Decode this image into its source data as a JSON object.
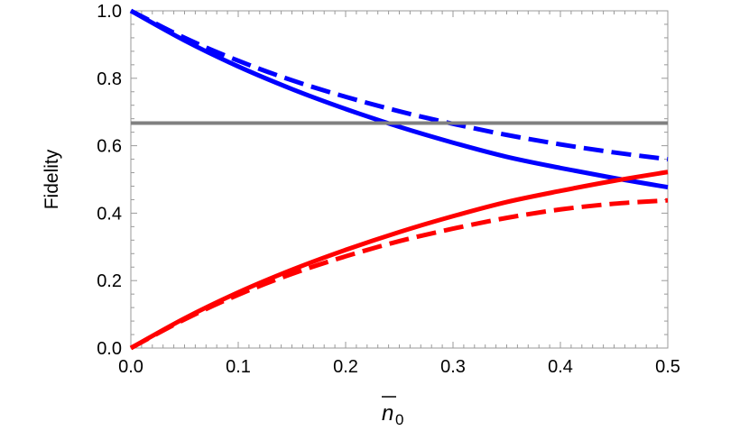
{
  "chart_data": {
    "type": "line",
    "title": "",
    "xlabel": "n̄₀",
    "xlabel_base": "n",
    "xlabel_subscript": "0",
    "ylabel": "Fidelity",
    "xlim": [
      0,
      0.5
    ],
    "ylim": [
      0,
      1.0
    ],
    "x_ticks": [
      0.0,
      0.1,
      0.2,
      0.3,
      0.4,
      0.5
    ],
    "x_tick_labels": [
      "0.0",
      "0.1",
      "0.2",
      "0.3",
      "0.4",
      "0.5"
    ],
    "y_ticks": [
      0.0,
      0.2,
      0.4,
      0.6,
      0.8,
      1.0
    ],
    "y_tick_labels": [
      "0.0",
      "0.2",
      "0.4",
      "0.6",
      "0.8",
      "1.0"
    ],
    "grid": false,
    "legend": "none",
    "x": [
      0.0,
      0.05,
      0.1,
      0.15,
      0.2,
      0.25,
      0.3,
      0.35,
      0.4,
      0.45,
      0.5
    ],
    "series": [
      {
        "color": "#0000ff",
        "dash": "solid",
        "values": [
          1.0,
          0.912,
          0.835,
          0.768,
          0.709,
          0.656,
          0.609,
          0.567,
          0.534,
          0.504,
          0.477
        ]
      },
      {
        "color": "#0000ff",
        "dash": "dashed",
        "values": [
          1.0,
          0.92,
          0.852,
          0.794,
          0.745,
          0.702,
          0.665,
          0.632,
          0.604,
          0.58,
          0.56
        ]
      },
      {
        "color": "#ff0000",
        "dash": "solid",
        "values": [
          0.0,
          0.088,
          0.165,
          0.232,
          0.291,
          0.344,
          0.391,
          0.433,
          0.466,
          0.496,
          0.522
        ]
      },
      {
        "color": "#ff0000",
        "dash": "dashed",
        "values": [
          0.0,
          0.085,
          0.158,
          0.22,
          0.272,
          0.317,
          0.354,
          0.386,
          0.411,
          0.428,
          0.438
        ]
      },
      {
        "color": "#808080",
        "dash": "solid",
        "values": [
          0.667,
          0.667,
          0.667,
          0.667,
          0.667,
          0.667,
          0.667,
          0.667,
          0.667,
          0.667,
          0.667
        ]
      }
    ]
  }
}
